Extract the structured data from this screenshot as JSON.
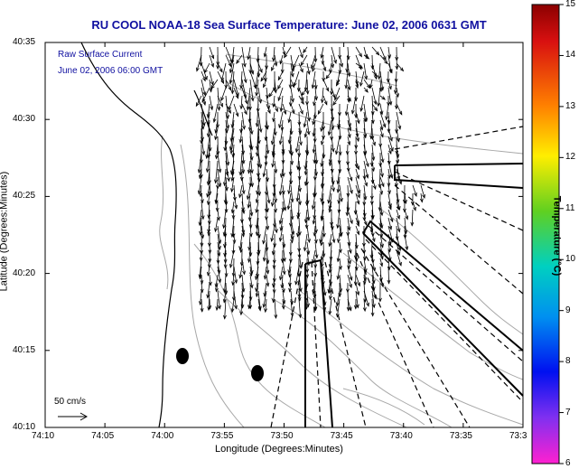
{
  "title": "RU COOL  NOAA-18  Sea Surface Temperature:  June 02, 2006 0631 GMT",
  "caption": {
    "line1": "Raw Surface Current",
    "line2": "June 02, 2006 06:00 GMT"
  },
  "axes": {
    "xlabel": "Longitude (Degrees:Minutes)",
    "ylabel": "Latitude (Degrees:Minutes)",
    "x_ticks": [
      "74:10",
      "74:05",
      "74:00",
      "73:55",
      "73:50",
      "73:45",
      "73:40",
      "73:35",
      "73:3"
    ],
    "y_ticks": [
      "40:35",
      "40:30",
      "40:25",
      "40:20",
      "40:15",
      "40:10"
    ]
  },
  "colorbar": {
    "label": "Temperature (°C)",
    "ticks": [
      "15",
      "14",
      "13",
      "12",
      "11",
      "10",
      "9",
      "8",
      "7",
      "6"
    ],
    "min": 6,
    "max": 15
  },
  "scale_bar": {
    "label": "50 cm/s"
  },
  "colors": {
    "title": "#1010a0",
    "caption": "#1010a0",
    "coast": "#000000",
    "bathymetry": "#a8a8a8",
    "vectors": "#000000"
  }
}
